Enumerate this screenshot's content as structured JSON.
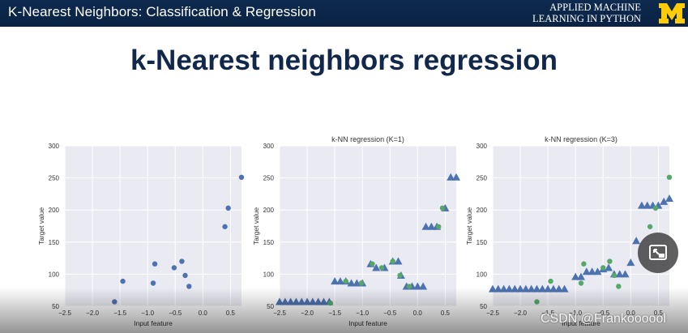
{
  "header": {
    "title": "K-Nearest Neighbors: Classification & Regression",
    "brand_line1": "APPLIED MACHINE",
    "brand_line2": "LEARNING IN PYTHON",
    "logo_icon": "block-m-logo",
    "logo_color": "#ffcb05"
  },
  "slide": {
    "title": "k-Nearest neighbors regression"
  },
  "watermark": "CSDN @Frankoooool",
  "pip_icon": "picture-in-picture-icon",
  "colors": {
    "train_point": "#4c72b0",
    "prediction": "#4c72b0",
    "test_point": "#55a868",
    "plot_background": "#eaeaf2",
    "grid": "#ffffff"
  },
  "chart_data": [
    {
      "type": "scatter",
      "title": "",
      "xlabel": "Input feature",
      "ylabel": "Target value",
      "xlim": [
        -2.5,
        0.7
      ],
      "ylim": [
        50,
        300
      ],
      "xticks": [
        -2.5,
        -2.0,
        -1.5,
        -1.0,
        -0.5,
        0.0,
        0.5
      ],
      "xtick_labels": [
        "−2.5",
        "−2.0",
        "−1.5",
        "−1.0",
        "−0.5",
        "0.0",
        "0.5"
      ],
      "yticks": [
        50,
        100,
        150,
        200,
        250,
        300
      ],
      "ytick_labels": [
        "50",
        "100",
        "150",
        "200",
        "250",
        "300"
      ],
      "series": [
        {
          "marker": "circle",
          "points": [
            [
              -1.6,
              57
            ],
            [
              -1.45,
              89
            ],
            [
              -0.9,
              86
            ],
            [
              -0.87,
              116
            ],
            [
              -0.52,
              110
            ],
            [
              -0.38,
              120
            ],
            [
              -0.32,
              98
            ],
            [
              -0.25,
              81
            ],
            [
              0.4,
              174
            ],
            [
              0.46,
              203
            ],
            [
              0.7,
              251
            ]
          ]
        }
      ]
    },
    {
      "type": "scatter",
      "title": "k-NN regression (K=1)",
      "xlabel": "Input feature",
      "ylabel": "Target value",
      "xlim": [
        -2.5,
        0.7
      ],
      "ylim": [
        50,
        300
      ],
      "xticks": [
        -2.5,
        -2.0,
        -1.5,
        -1.0,
        -0.5,
        0.0,
        0.5
      ],
      "xtick_labels": [
        "−2.5",
        "−2.0",
        "−1.5",
        "−1.0",
        "−0.5",
        "0.0",
        "0.5"
      ],
      "yticks": [
        50,
        100,
        150,
        200,
        250,
        300
      ],
      "ytick_labels": [
        "50",
        "100",
        "150",
        "200",
        "250",
        "300"
      ],
      "series": [
        {
          "marker": "triangle",
          "points": [
            [
              -2.5,
              57
            ],
            [
              -2.4,
              57
            ],
            [
              -2.3,
              57
            ],
            [
              -2.2,
              57
            ],
            [
              -2.1,
              57
            ],
            [
              -2.0,
              57
            ],
            [
              -1.9,
              57
            ],
            [
              -1.8,
              57
            ],
            [
              -1.7,
              57
            ],
            [
              -1.6,
              57
            ],
            [
              -1.5,
              89
            ],
            [
              -1.4,
              89
            ],
            [
              -1.3,
              89
            ],
            [
              -1.2,
              86
            ],
            [
              -1.1,
              86
            ],
            [
              -1.0,
              86
            ],
            [
              -0.85,
              116
            ],
            [
              -0.75,
              110
            ],
            [
              -0.6,
              110
            ],
            [
              -0.45,
              120
            ],
            [
              -0.35,
              120
            ],
            [
              -0.3,
              98
            ],
            [
              -0.2,
              81
            ],
            [
              -0.1,
              81
            ],
            [
              0.0,
              81
            ],
            [
              0.1,
              81
            ],
            [
              0.15,
              174
            ],
            [
              0.25,
              174
            ],
            [
              0.35,
              174
            ],
            [
              0.5,
              203
            ],
            [
              0.6,
              251
            ],
            [
              0.7,
              251
            ]
          ]
        },
        {
          "marker": "circle",
          "points": [
            [
              -1.58,
              55
            ],
            [
              -1.3,
              89
            ],
            [
              -0.82,
              116
            ],
            [
              -0.65,
              110
            ],
            [
              -0.45,
              120
            ],
            [
              -0.15,
              81
            ],
            [
              0.45,
              203
            ],
            [
              0.38,
              174
            ],
            [
              -0.32,
              98
            ],
            [
              -1.02,
              86
            ]
          ]
        }
      ]
    },
    {
      "type": "scatter",
      "title": "k-NN regression (K=3)",
      "xlabel": "Input feature",
      "ylabel": "Target value",
      "xlim": [
        -2.5,
        0.7
      ],
      "ylim": [
        50,
        300
      ],
      "xticks": [
        -2.5,
        -2.0,
        -1.5,
        -1.0,
        -0.5,
        0.0,
        0.5
      ],
      "xtick_labels": [
        "−2.5",
        "−2.0",
        "−1.5",
        "−1.0",
        "−0.5",
        "0.0",
        "0.5"
      ],
      "yticks": [
        50,
        100,
        150,
        200,
        250,
        300
      ],
      "ytick_labels": [
        "50",
        "100",
        "150",
        "200",
        "250",
        "300"
      ],
      "series": [
        {
          "marker": "triangle",
          "points": [
            [
              -2.5,
              77
            ],
            [
              -2.4,
              77
            ],
            [
              -2.3,
              77
            ],
            [
              -2.2,
              77
            ],
            [
              -2.1,
              77
            ],
            [
              -2.0,
              77
            ],
            [
              -1.9,
              77
            ],
            [
              -1.8,
              77
            ],
            [
              -1.7,
              77
            ],
            [
              -1.6,
              77
            ],
            [
              -1.5,
              77
            ],
            [
              -1.4,
              77
            ],
            [
              -1.3,
              77
            ],
            [
              -1.2,
              77
            ],
            [
              -1.0,
              96
            ],
            [
              -0.9,
              96
            ],
            [
              -0.8,
              104
            ],
            [
              -0.7,
              104
            ],
            [
              -0.6,
              104
            ],
            [
              -0.5,
              108
            ],
            [
              -0.4,
              110
            ],
            [
              -0.3,
              100
            ],
            [
              -0.2,
              100
            ],
            [
              -0.1,
              100
            ],
            [
              0.0,
              118
            ],
            [
              0.1,
              152
            ],
            [
              0.2,
              207
            ],
            [
              0.3,
              207
            ],
            [
              0.4,
              207
            ],
            [
              0.5,
              207
            ],
            [
              0.6,
              213
            ],
            [
              0.7,
              218
            ]
          ]
        },
        {
          "marker": "circle",
          "points": [
            [
              -1.7,
              57
            ],
            [
              -1.45,
              89
            ],
            [
              -0.9,
              86
            ],
            [
              -0.85,
              116
            ],
            [
              -0.5,
              110
            ],
            [
              -0.38,
              120
            ],
            [
              -0.3,
              98
            ],
            [
              -0.22,
              81
            ],
            [
              0.35,
              174
            ],
            [
              0.45,
              203
            ],
            [
              0.7,
              251
            ]
          ]
        }
      ]
    }
  ]
}
